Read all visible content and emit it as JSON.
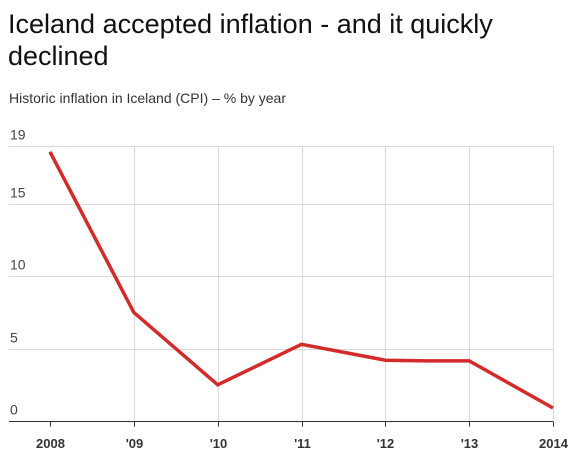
{
  "chart_data": {
    "type": "line",
    "title": "Iceland accepted inflation - and it quickly declined",
    "subtitle": "Historic inflation in Iceland (CPI) – % by year",
    "categories": [
      "2008",
      "'09",
      "'10",
      "'11",
      "'12",
      "'13",
      "2014"
    ],
    "y_ticks": [
      "0",
      "5",
      "10",
      "15",
      "19"
    ],
    "ylim": [
      0,
      19
    ],
    "series": [
      {
        "points": [
          {
            "x": 2008.0,
            "y": 18.6
          },
          {
            "x": 2009.0,
            "y": 7.5
          },
          {
            "x": 2010.0,
            "y": 2.5
          },
          {
            "x": 2011.0,
            "y": 5.3
          },
          {
            "x": 2012.0,
            "y": 4.2
          },
          {
            "x": 2012.5,
            "y": 4.15
          },
          {
            "x": 2013.0,
            "y": 4.15
          },
          {
            "x": 2014.0,
            "y": 0.9
          }
        ]
      }
    ],
    "grid": true,
    "colors": {
      "line": "#d32a2a",
      "grid": "#d9d9d9",
      "axis": "#333333"
    }
  }
}
